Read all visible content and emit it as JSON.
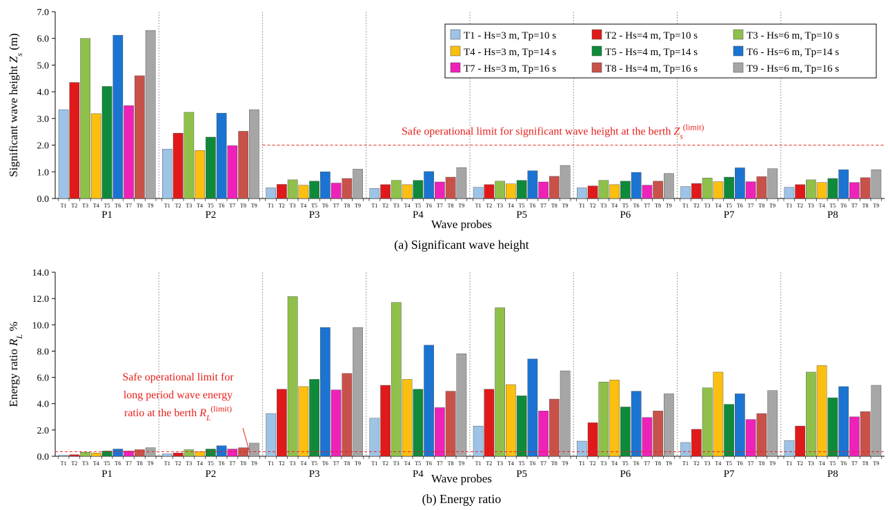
{
  "colors": {
    "series": [
      "#9dc3e6",
      "#e01a1a",
      "#8fc14a",
      "#fbbf10",
      "#0f8a3a",
      "#1b74d2",
      "#ee22b8",
      "#c8524a",
      "#a6a6a6"
    ],
    "limit_line": "#e8201b",
    "grid": "#999999"
  },
  "chart_data": [
    {
      "type": "bar",
      "caption": "(a) Significant wave height",
      "xlabel": "Wave probes",
      "ylabel": "Significant wave height Zs (m)",
      "ylim": [
        0,
        7
      ],
      "ytick_step": 1,
      "ytick_labels": [
        "0.0",
        "1.0",
        "2.0",
        "3.0",
        "4.0",
        "5.0",
        "6.0",
        "7.0"
      ],
      "categories": [
        "P1",
        "P2",
        "P3",
        "P4",
        "P5",
        "P6",
        "P7",
        "P8"
      ],
      "test_labels": [
        "T1",
        "T2",
        "T3",
        "T4",
        "T5",
        "T6",
        "T7",
        "T8",
        "T9"
      ],
      "legend_position": "top-right",
      "grid": "vertical dashed separators between probes",
      "series": [
        {
          "name": "T1 - Hs=3 m, Tp=10 s",
          "values": [
            3.33,
            1.85,
            0.4,
            0.38,
            0.42,
            0.4,
            0.45,
            0.42
          ]
        },
        {
          "name": "T2 - Hs=4 m, Tp=10 s",
          "values": [
            4.35,
            2.45,
            0.53,
            0.52,
            0.52,
            0.47,
            0.56,
            0.52
          ]
        },
        {
          "name": "T3 - Hs=6 m, Tp=10 s",
          "values": [
            6.0,
            3.23,
            0.7,
            0.68,
            0.65,
            0.68,
            0.77,
            0.7
          ]
        },
        {
          "name": "T4 - Hs=3 m, Tp=14 s",
          "values": [
            3.18,
            1.8,
            0.5,
            0.52,
            0.55,
            0.52,
            0.63,
            0.6
          ]
        },
        {
          "name": "T5 - Hs=4 m, Tp=14 s",
          "values": [
            4.2,
            2.3,
            0.65,
            0.68,
            0.68,
            0.65,
            0.8,
            0.75
          ]
        },
        {
          "name": "T6 - Hs=6 m, Tp=14 s",
          "values": [
            6.12,
            3.2,
            1.0,
            1.01,
            1.04,
            0.98,
            1.15,
            1.08
          ]
        },
        {
          "name": "T7 - Hs=3 m, Tp=16 s",
          "values": [
            3.48,
            1.98,
            0.58,
            0.62,
            0.62,
            0.5,
            0.63,
            0.6
          ]
        },
        {
          "name": "T8 - Hs=4 m, Tp=16 s",
          "values": [
            4.6,
            2.52,
            0.75,
            0.8,
            0.83,
            0.65,
            0.82,
            0.78
          ]
        },
        {
          "name": "T9 - Hs=6 m, Tp=16 s",
          "values": [
            6.3,
            3.33,
            1.1,
            1.16,
            1.24,
            0.94,
            1.12,
            1.08
          ]
        }
      ],
      "limit": {
        "value": 2.0,
        "label": "Safe operational limit for significant wave height at the berth Zs(limit)"
      }
    },
    {
      "type": "bar",
      "caption": "(b) Energy ratio",
      "xlabel": "Wave probes",
      "ylabel": "Energy ratio RL %",
      "ylim": [
        0,
        14
      ],
      "ytick_step": 2,
      "ytick_labels": [
        "0.0",
        "2.0",
        "4.0",
        "6.0",
        "8.0",
        "10.0",
        "12.0",
        "14.0"
      ],
      "categories": [
        "P1",
        "P2",
        "P3",
        "P4",
        "P5",
        "P6",
        "P7",
        "P8"
      ],
      "test_labels": [
        "T1",
        "T2",
        "T3",
        "T4",
        "T5",
        "T6",
        "T7",
        "T8",
        "T9"
      ],
      "grid": "vertical dashed separators between probes",
      "series": [
        {
          "name": "T1 - Hs=3 m, Tp=10 s",
          "values": [
            0.08,
            0.18,
            3.25,
            2.9,
            2.3,
            1.15,
            1.05,
            1.2
          ]
        },
        {
          "name": "T2 - Hs=4 m, Tp=10 s",
          "values": [
            0.12,
            0.25,
            5.1,
            5.4,
            5.1,
            2.55,
            2.05,
            2.3
          ]
        },
        {
          "name": "T3 - Hs=6 m, Tp=10 s",
          "values": [
            0.3,
            0.5,
            12.15,
            11.7,
            11.3,
            5.65,
            5.2,
            6.4
          ]
        },
        {
          "name": "T4 - Hs=3 m, Tp=14 s",
          "values": [
            0.25,
            0.35,
            5.3,
            5.85,
            5.45,
            5.8,
            6.4,
            6.9
          ]
        },
        {
          "name": "T5 - Hs=4 m, Tp=14 s",
          "values": [
            0.4,
            0.55,
            5.85,
            5.1,
            4.6,
            3.75,
            3.95,
            4.45
          ]
        },
        {
          "name": "T6 - Hs=6 m, Tp=14 s",
          "values": [
            0.55,
            0.8,
            9.8,
            8.45,
            7.4,
            4.95,
            4.75,
            5.3
          ]
        },
        {
          "name": "T7 - Hs=3 m, Tp=16 s",
          "values": [
            0.4,
            0.55,
            5.05,
            3.7,
            3.45,
            2.95,
            2.8,
            3.0
          ]
        },
        {
          "name": "T8 - Hs=4 m, Tp=16 s",
          "values": [
            0.5,
            0.65,
            6.3,
            4.95,
            4.35,
            3.45,
            3.25,
            3.4
          ]
        },
        {
          "name": "T9 - Hs=6 m, Tp=16 s",
          "values": [
            0.65,
            1.0,
            9.8,
            7.8,
            6.5,
            4.75,
            5.0,
            5.4
          ]
        }
      ],
      "limit": {
        "value": 0.35,
        "label_lines": [
          "Safe operational limit for",
          "long period wave energy",
          "ratio at the berth RL(limit)"
        ]
      }
    }
  ]
}
